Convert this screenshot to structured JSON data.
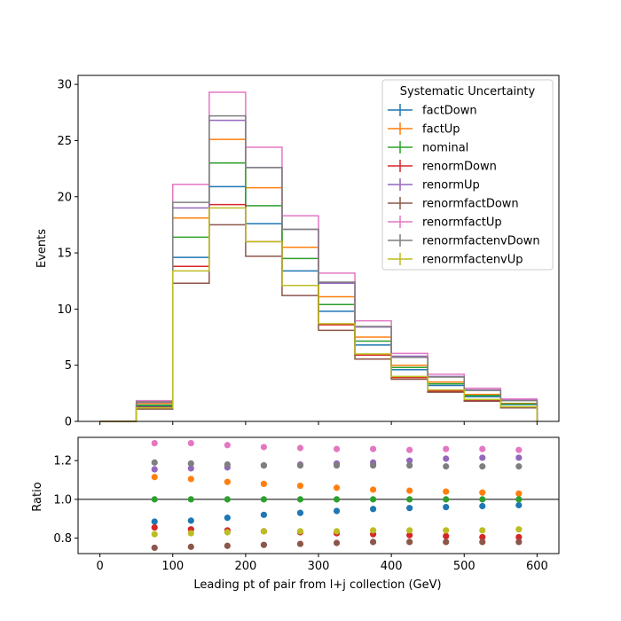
{
  "chart_data": [
    {
      "type": "line",
      "plot": "main-histogram",
      "xlabel": "",
      "ylabel": "Events",
      "xlim": [
        -30,
        630
      ],
      "ylim": [
        0,
        30.8
      ],
      "xticks": [
        "0",
        "100",
        "200",
        "300",
        "400",
        "500",
        "600"
      ],
      "yticks": [
        "0",
        "5",
        "10",
        "15",
        "20",
        "25",
        "30"
      ],
      "grid": false,
      "legend": {
        "title": "Systematic Uncertainty",
        "placement": "top-right"
      },
      "bin_edges": [
        0,
        50,
        100,
        150,
        200,
        250,
        300,
        350,
        400,
        450,
        500,
        550,
        600
      ],
      "series": [
        {
          "name": "factDown",
          "color": "#1f77b4",
          "values": [
            0,
            1.35,
            14.6,
            20.9,
            17.6,
            13.4,
            9.8,
            6.8,
            4.6,
            3.2,
            2.2,
            1.5
          ]
        },
        {
          "name": "factUp",
          "color": "#ff7f0e",
          "values": [
            0,
            1.6,
            18.1,
            25.1,
            20.8,
            15.5,
            11.1,
            7.5,
            5.0,
            3.5,
            2.4,
            1.6
          ]
        },
        {
          "name": "nominal",
          "color": "#2ca02c",
          "values": [
            0,
            1.45,
            16.4,
            23.0,
            19.2,
            14.5,
            10.4,
            7.15,
            4.8,
            3.35,
            2.3,
            1.55
          ]
        },
        {
          "name": "renormDown",
          "color": "#d62728",
          "values": [
            0,
            1.25,
            13.8,
            19.3,
            16.0,
            12.1,
            8.6,
            5.9,
            3.9,
            2.7,
            1.85,
            1.25
          ]
        },
        {
          "name": "renormUp",
          "color": "#9467bd",
          "values": [
            0,
            1.7,
            19.0,
            26.8,
            22.6,
            17.1,
            12.3,
            8.4,
            5.8,
            4.0,
            2.8,
            1.9
          ]
        },
        {
          "name": "renormfactDown",
          "color": "#8c564b",
          "values": [
            0,
            1.1,
            12.3,
            17.5,
            14.7,
            11.2,
            8.1,
            5.55,
            3.75,
            2.6,
            1.8,
            1.2
          ]
        },
        {
          "name": "renormfactUp",
          "color": "#e377c2",
          "values": [
            0,
            1.85,
            21.1,
            29.3,
            24.4,
            18.3,
            13.2,
            8.95,
            6.05,
            4.2,
            2.95,
            2.0
          ]
        },
        {
          "name": "renormfactenvDown",
          "color": "#7f7f7f",
          "values": [
            0,
            1.75,
            19.5,
            27.2,
            22.6,
            17.1,
            12.4,
            8.45,
            5.7,
            3.95,
            2.75,
            1.85
          ]
        },
        {
          "name": "renormfactenvUp",
          "color": "#bcbd22",
          "values": [
            0,
            1.2,
            13.4,
            19.0,
            16.0,
            12.1,
            8.7,
            6.0,
            4.0,
            2.8,
            1.95,
            1.3
          ]
        }
      ]
    },
    {
      "type": "scatter",
      "plot": "ratio-panel",
      "xlabel": "Leading pt of pair from l+j collection (GeV)",
      "ylabel": "Ratio",
      "xlim": [
        -30,
        630
      ],
      "ylim": [
        0.72,
        1.32
      ],
      "xticks": [
        "0",
        "100",
        "200",
        "300",
        "400",
        "500",
        "600"
      ],
      "yticks": [
        "0.8",
        "1.0",
        "1.2"
      ],
      "reference_line": 1.0,
      "grid": false,
      "x": [
        75,
        125,
        175,
        225,
        275,
        325,
        375,
        425,
        475,
        525,
        575
      ],
      "series": [
        {
          "name": "factDown",
          "color": "#1f77b4",
          "values": [
            0.885,
            0.89,
            0.905,
            0.92,
            0.93,
            0.94,
            0.95,
            0.955,
            0.96,
            0.965,
            0.97
          ]
        },
        {
          "name": "factUp",
          "color": "#ff7f0e",
          "values": [
            1.115,
            1.105,
            1.09,
            1.08,
            1.07,
            1.06,
            1.05,
            1.045,
            1.04,
            1.035,
            1.03
          ]
        },
        {
          "name": "nominal",
          "color": "#2ca02c",
          "values": [
            1.0,
            1.0,
            1.0,
            1.0,
            1.0,
            1.0,
            1.0,
            1.0,
            1.0,
            1.0,
            1.0
          ]
        },
        {
          "name": "renormDown",
          "color": "#d62728",
          "values": [
            0.855,
            0.845,
            0.84,
            0.835,
            0.83,
            0.825,
            0.82,
            0.815,
            0.81,
            0.805,
            0.805
          ]
        },
        {
          "name": "renormUp",
          "color": "#9467bd",
          "values": [
            1.155,
            1.16,
            1.165,
            1.175,
            1.18,
            1.185,
            1.19,
            1.2,
            1.21,
            1.215,
            1.215
          ]
        },
        {
          "name": "renormfactDown",
          "color": "#8c564b",
          "values": [
            0.75,
            0.755,
            0.76,
            0.765,
            0.77,
            0.775,
            0.78,
            0.78,
            0.78,
            0.78,
            0.78
          ]
        },
        {
          "name": "renormfactUp",
          "color": "#e377c2",
          "values": [
            1.29,
            1.29,
            1.28,
            1.27,
            1.265,
            1.26,
            1.26,
            1.255,
            1.26,
            1.26,
            1.255
          ]
        },
        {
          "name": "renormfactenvDown",
          "color": "#7f7f7f",
          "values": [
            1.19,
            1.185,
            1.18,
            1.175,
            1.175,
            1.175,
            1.175,
            1.175,
            1.17,
            1.17,
            1.17
          ]
        },
        {
          "name": "renormfactenvUp",
          "color": "#bcbd22",
          "values": [
            0.82,
            0.825,
            0.83,
            0.835,
            0.835,
            0.835,
            0.84,
            0.84,
            0.84,
            0.84,
            0.845
          ]
        }
      ]
    }
  ]
}
